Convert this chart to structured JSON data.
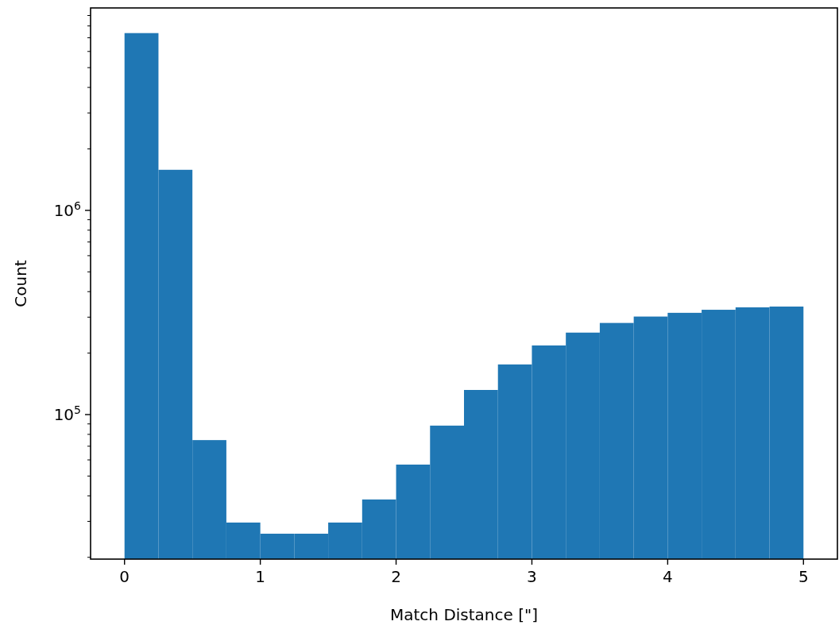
{
  "chart_data": {
    "type": "histogram",
    "xlabel": "Match Distance [\"]",
    "ylabel": "Count",
    "color": "#1f77b4",
    "log": "y",
    "bins": [
      0,
      0.25,
      0.5,
      0.75,
      1,
      1.25,
      1.5,
      1.75,
      2,
      2.25,
      2.5,
      2.75,
      3,
      3.25,
      3.5,
      3.75,
      4,
      4.25,
      4.5,
      4.75,
      5
    ],
    "values": [
      7380000,
      1580000,
      75000,
      29600,
      26100,
      26100,
      29600,
      38400,
      56900,
      88300,
      132000,
      176000,
      218000,
      252000,
      281000,
      302000,
      315000,
      326000,
      335000,
      338000
    ],
    "xlim": [
      -0.25,
      5.25
    ],
    "xticks": [
      0,
      1,
      2,
      3,
      4,
      5
    ],
    "ylim": [
      19600,
      9800000
    ],
    "yticks": [
      {
        "value": 20000,
        "label": null
      },
      {
        "value": 30000,
        "label": null
      },
      {
        "value": 40000,
        "label": null
      },
      {
        "value": 50000,
        "label": null
      },
      {
        "value": 60000,
        "label": null
      },
      {
        "value": 70000,
        "label": null
      },
      {
        "value": 80000,
        "label": null
      },
      {
        "value": 90000,
        "label": null
      },
      {
        "value": 100000,
        "label": "10$^{5}$"
      },
      {
        "value": 200000,
        "label": null
      },
      {
        "value": 300000,
        "label": null
      },
      {
        "value": 400000,
        "label": null
      },
      {
        "value": 500000,
        "label": null
      },
      {
        "value": 600000,
        "label": null
      },
      {
        "value": 700000,
        "label": null
      },
      {
        "value": 800000,
        "label": null
      },
      {
        "value": 900000,
        "label": null
      },
      {
        "value": 1000000,
        "label": "10$^{6}$"
      },
      {
        "value": 2000000,
        "label": null
      },
      {
        "value": 3000000,
        "label": null
      },
      {
        "value": 4000000,
        "label": null
      },
      {
        "value": 5000000,
        "label": null
      },
      {
        "value": 6000000,
        "label": null
      },
      {
        "value": 7000000,
        "label": null
      },
      {
        "value": 8000000,
        "label": null
      },
      {
        "value": 9000000,
        "label": null
      }
    ],
    "grid": false
  }
}
